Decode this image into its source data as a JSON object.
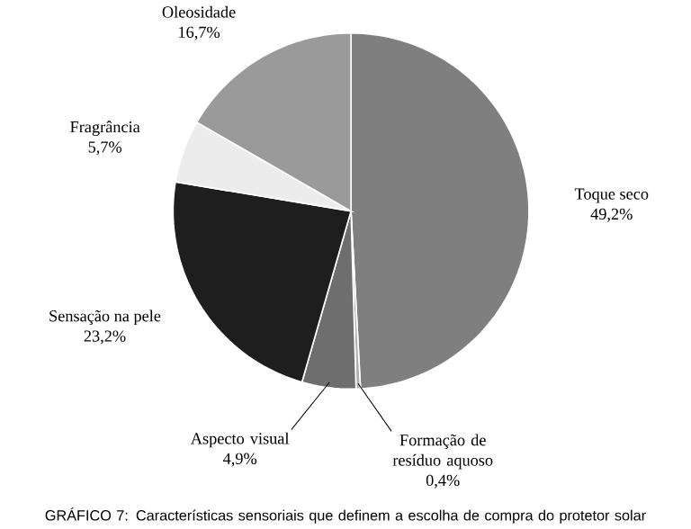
{
  "chart_data": {
    "type": "pie",
    "title": "GRÁFICO 7: Características sensoriais que definem a escolha de compra do protetor solar",
    "categories": [
      "Toque seco",
      "Formação de resíduo aquoso",
      "Aspecto visual",
      "Sensação na pele",
      "Fragrância",
      "Oleosidade"
    ],
    "values": [
      49.2,
      0.4,
      4.9,
      23.2,
      5.7,
      16.7
    ],
    "value_labels": [
      "49,2%",
      "0,4%",
      "4,9%",
      "23,2%",
      "5,7%",
      "16,7%"
    ],
    "colors": [
      "#7f7f7f",
      "#b0b0b0",
      "#6e6e6e",
      "#1e1e1e",
      "#ececec",
      "#9a9a9a"
    ]
  }
}
